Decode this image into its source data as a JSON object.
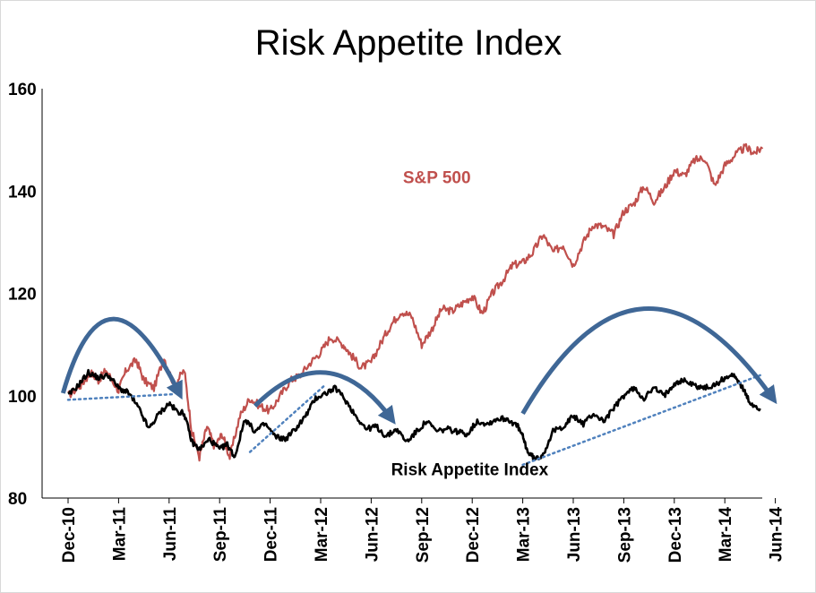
{
  "chart_data": {
    "type": "line",
    "title": "Risk Appetite Index",
    "xlabel": "",
    "ylabel": "",
    "ylim": [
      80,
      160
    ],
    "yticks": [
      80,
      100,
      120,
      140,
      160
    ],
    "grid": false,
    "x_tick_labels": [
      "Dec-10",
      "Mar-11",
      "Jun-11",
      "Sep-11",
      "Dec-11",
      "Mar-12",
      "Jun-12",
      "Sep-12",
      "Dec-12",
      "Mar-13",
      "Jun-13",
      "Sep-13",
      "Dec-13",
      "Mar-14",
      "Jun-14"
    ],
    "x_range": [
      0,
      14
    ],
    "series": [
      {
        "name": "S&P 500",
        "color": "#c0504d",
        "x": [
          0.0,
          0.25,
          0.45,
          0.6,
          0.75,
          1.0,
          1.15,
          1.35,
          1.5,
          1.7,
          1.9,
          2.1,
          2.3,
          2.45,
          2.6,
          2.75,
          2.9,
          3.05,
          3.2,
          3.4,
          3.6,
          3.8,
          4.0,
          4.2,
          4.4,
          4.6,
          4.8,
          5.0,
          5.2,
          5.45,
          5.6,
          5.8,
          6.0,
          6.2,
          6.4,
          6.6,
          6.8,
          7.0,
          7.2,
          7.4,
          7.6,
          7.8,
          8.0,
          8.2,
          8.4,
          8.6,
          8.8,
          9.0,
          9.2,
          9.4,
          9.6,
          9.8,
          10.0,
          10.2,
          10.4,
          10.6,
          10.8,
          11.0,
          11.2,
          11.4,
          11.6,
          11.8,
          12.0,
          12.2,
          12.4,
          12.6,
          12.8,
          13.0,
          13.2,
          13.4,
          13.6,
          13.75
        ],
        "values": [
          100.0,
          102.0,
          104.5,
          103.0,
          105.0,
          101.0,
          105.0,
          107.0,
          103.0,
          101.5,
          107.5,
          102.0,
          105.0,
          93.0,
          88.0,
          94.0,
          90.0,
          92.5,
          88.0,
          96.0,
          99.5,
          98.0,
          97.0,
          100.0,
          103.0,
          104.0,
          106.5,
          108.5,
          111.5,
          110.0,
          108.0,
          105.5,
          106.5,
          110.5,
          114.0,
          116.5,
          115.5,
          110.0,
          113.0,
          117.0,
          116.5,
          118.0,
          119.5,
          116.0,
          120.0,
          122.5,
          125.5,
          126.0,
          128.0,
          131.5,
          128.0,
          129.5,
          125.5,
          130.0,
          133.5,
          133.0,
          131.5,
          136.0,
          137.5,
          141.0,
          138.0,
          140.5,
          144.0,
          143.0,
          146.0,
          146.5,
          141.0,
          145.0,
          147.0,
          148.5,
          147.5,
          148.5
        ]
      },
      {
        "name": "Risk Appetite Index",
        "color": "#000000",
        "x": [
          0.0,
          0.2,
          0.4,
          0.6,
          0.8,
          1.0,
          1.2,
          1.4,
          1.6,
          1.8,
          2.0,
          2.15,
          2.3,
          2.45,
          2.6,
          2.8,
          3.0,
          3.15,
          3.3,
          3.5,
          3.7,
          3.9,
          4.1,
          4.3,
          4.5,
          4.7,
          4.9,
          5.1,
          5.3,
          5.5,
          5.7,
          5.9,
          6.1,
          6.3,
          6.5,
          6.7,
          6.9,
          7.1,
          7.3,
          7.5,
          7.7,
          7.9,
          8.1,
          8.3,
          8.5,
          8.7,
          8.9,
          9.0,
          9.1,
          9.25,
          9.4,
          9.6,
          9.8,
          10.0,
          10.2,
          10.4,
          10.6,
          10.8,
          11.0,
          11.2,
          11.4,
          11.6,
          11.8,
          12.0,
          12.2,
          12.4,
          12.6,
          12.8,
          13.0,
          13.2,
          13.35,
          13.5,
          13.7
        ],
        "values": [
          100.0,
          102.0,
          104.5,
          103.5,
          104.0,
          101.5,
          100.5,
          97.5,
          93.5,
          96.5,
          98.5,
          97.0,
          96.5,
          91.0,
          89.5,
          91.5,
          89.5,
          90.5,
          88.0,
          95.5,
          93.0,
          94.5,
          92.0,
          91.5,
          93.5,
          96.0,
          99.5,
          100.5,
          101.5,
          99.0,
          96.0,
          93.5,
          94.0,
          92.0,
          93.5,
          91.0,
          93.0,
          95.0,
          93.0,
          93.5,
          93.0,
          92.5,
          95.0,
          94.5,
          95.5,
          95.5,
          94.0,
          92.0,
          89.0,
          87.5,
          88.5,
          93.0,
          94.0,
          96.0,
          94.5,
          96.5,
          95.0,
          97.5,
          100.0,
          101.5,
          99.5,
          101.5,
          100.0,
          102.5,
          103.0,
          102.0,
          101.5,
          102.0,
          103.5,
          104.0,
          101.5,
          98.5,
          97.5
        ]
      }
    ],
    "trendlines": [
      {
        "name": "dotted-trendline-1",
        "x": [
          0.0,
          2.1
        ],
        "y": [
          99.2,
          100.3
        ]
      },
      {
        "name": "dotted-trendline-2",
        "x": [
          3.6,
          5.1
        ],
        "y": [
          89.0,
          102.2
        ]
      },
      {
        "name": "dotted-trendline-3",
        "x": [
          9.0,
          13.7
        ],
        "y": [
          86.5,
          104.0
        ]
      }
    ],
    "arrows": [
      {
        "name": "curved-arrow-1",
        "x": [
          -0.1,
          0.9,
          2.2
        ],
        "y": [
          100.5,
          115.0,
          100.5
        ]
      },
      {
        "name": "curved-arrow-2",
        "x": [
          3.7,
          5.1,
          6.4
        ],
        "y": [
          98.0,
          104.5,
          95.5
        ]
      },
      {
        "name": "curved-arrow-3",
        "x": [
          9.0,
          11.4,
          13.95
        ],
        "y": [
          96.5,
          117.0,
          99.5
        ]
      }
    ],
    "annotations": [
      {
        "text": "S&P 500",
        "x": 7.3,
        "y": 141.5,
        "color": "#c0504d"
      },
      {
        "text": "Risk Appetite Index",
        "x": 7.95,
        "y": 84.5,
        "color": "#000000"
      }
    ],
    "colors": {
      "sp500": "#c0504d",
      "risk_index": "#000000",
      "arrow": "#3f6796",
      "trendline": "#4f81bd",
      "axis": "#000000"
    }
  }
}
